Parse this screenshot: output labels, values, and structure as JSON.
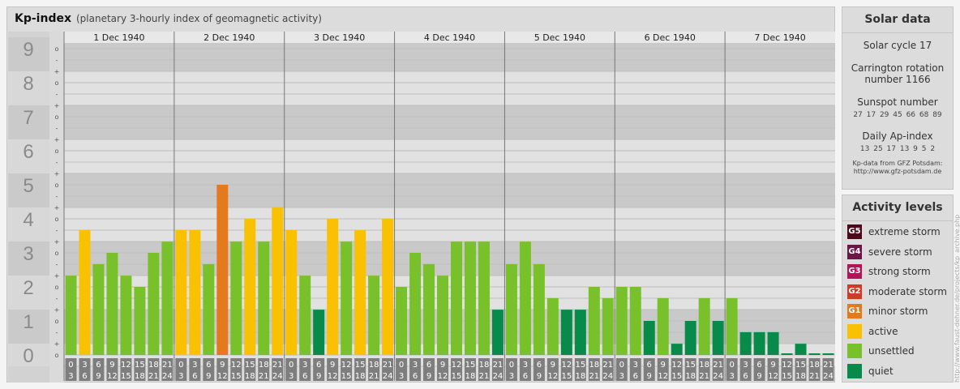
{
  "header": {
    "title": "Kp-index",
    "subtitle": "(planetary 3-hourly index of geomagnetic activity)"
  },
  "chart_data": {
    "type": "bar",
    "title": "Kp-index",
    "subtitle": "(planetary 3-hourly index of geomagnetic activity)",
    "ylim": [
      0,
      9
    ],
    "ytick_labels": [
      "0",
      "1",
      "2",
      "3",
      "4",
      "5",
      "6",
      "7",
      "8",
      "9"
    ],
    "minor_tick_labels": [
      "o",
      "+",
      "-"
    ],
    "days": [
      "1 Dec 1940",
      "2 Dec 1940",
      "3 Dec 1940",
      "4 Dec 1940",
      "5 Dec 1940",
      "6 Dec 1940",
      "7 Dec 1940"
    ],
    "interval_start_labels": [
      "0",
      "3",
      "6",
      "9",
      "12",
      "15",
      "18",
      "21"
    ],
    "interval_end_labels": [
      "3",
      "6",
      "9",
      "12",
      "15",
      "18",
      "21",
      "24"
    ],
    "values": [
      2.33,
      3.67,
      2.67,
      3.0,
      2.33,
      2.0,
      3.0,
      3.33,
      3.67,
      3.67,
      2.67,
      5.0,
      3.33,
      4.0,
      3.33,
      4.33,
      3.67,
      2.33,
      1.33,
      4.0,
      3.33,
      3.67,
      2.33,
      4.0,
      2.0,
      3.0,
      2.67,
      2.33,
      3.33,
      3.33,
      3.33,
      1.33,
      2.67,
      3.33,
      2.67,
      1.67,
      1.33,
      1.33,
      2.0,
      1.67,
      2.0,
      2.0,
      1.0,
      1.67,
      0.33,
      1.0,
      1.67,
      1.0,
      1.67,
      0.67,
      0.67,
      0.67,
      0.0,
      0.33,
      0.0,
      0.0
    ],
    "grid": true,
    "legend": "right"
  },
  "solar": {
    "title": "Solar data",
    "cycle": "Solar cycle 17",
    "carrington_line1": "Carrington rotation",
    "carrington_line2": "number 1166",
    "sunspot_label": "Sunspot number",
    "sunspot_values": "27  17  29  45  66  68  89",
    "ap_label": "Daily Ap-index",
    "ap_values": "13  25  17  13  9  5  2",
    "credit_line1": "Kp-data from GFZ Potsdam:",
    "credit_line2": "http://www.gfz-potsdam.de"
  },
  "levels": {
    "title": "Activity levels",
    "items": [
      {
        "badge": "G5",
        "label": "extreme storm",
        "color": "#4a0a1c"
      },
      {
        "badge": "G4",
        "label": "severe storm",
        "color": "#6e1548"
      },
      {
        "badge": "G3",
        "label": "strong storm",
        "color": "#b2145a"
      },
      {
        "badge": "G2",
        "label": "moderate storm",
        "color": "#d13a26"
      },
      {
        "badge": "G1",
        "label": "minor storm",
        "color": "#e47a1c"
      },
      {
        "badge": "",
        "label": "active",
        "color": "#f9c100"
      },
      {
        "badge": "",
        "label": "unsettled",
        "color": "#79c12a"
      },
      {
        "badge": "",
        "label": "quiet",
        "color": "#078a4a"
      }
    ]
  },
  "credit": "http://www.faust-dehner.de/projects/kp_archive.php"
}
